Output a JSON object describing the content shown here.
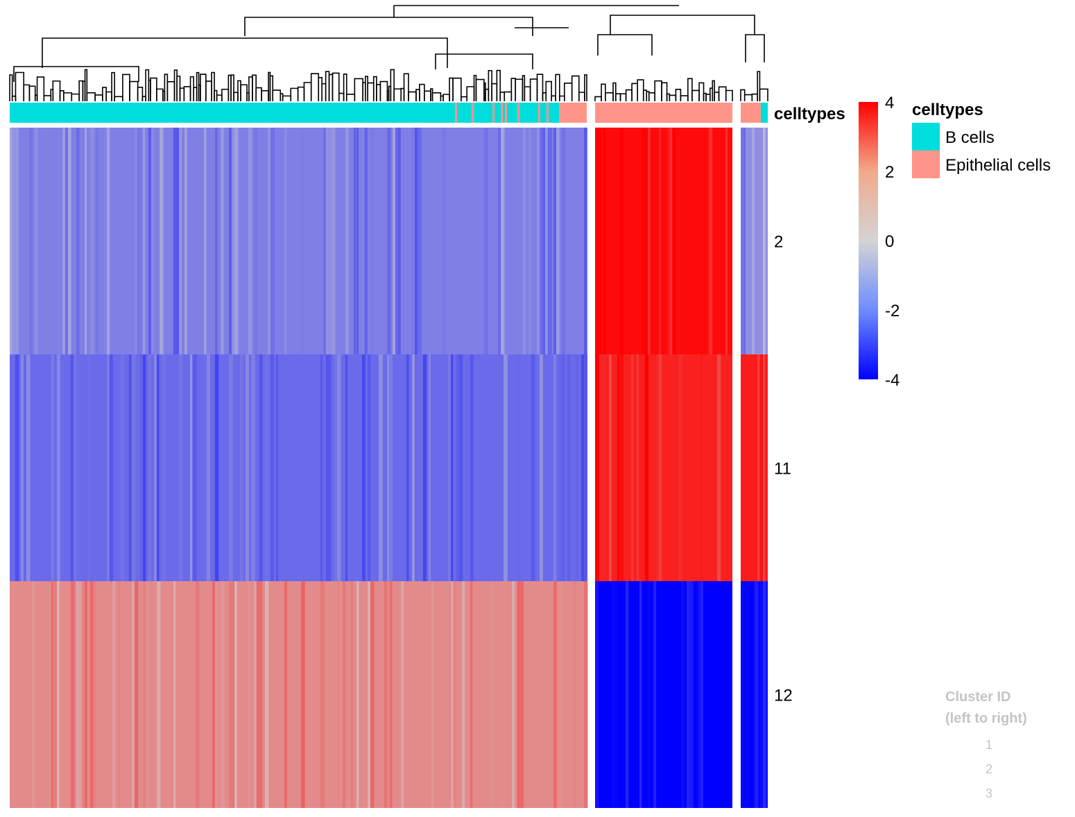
{
  "chart_data": {
    "type": "heatmap",
    "title": "",
    "xlabel": "",
    "ylabel": "",
    "column_splits": [
      {
        "cluster": "1",
        "celltype_mix": "mostly B cells, some Epithelial cells at right end"
      },
      {
        "cluster": "2",
        "celltype_mix": "Epithelial cells"
      },
      {
        "cluster": "3",
        "celltype_mix": "mostly Epithelial cells"
      }
    ],
    "rows": [
      {
        "label": "2",
        "values": [
          -1.6,
          3.8,
          -1.3
        ]
      },
      {
        "label": "11",
        "values": [
          -2.0,
          3.4,
          3.5
        ]
      },
      {
        "label": "12",
        "values": [
          1.4,
          -4.0,
          -3.9
        ]
      }
    ],
    "annotation": {
      "title": "celltypes",
      "legend_title": "celltypes",
      "categories": [
        {
          "name": "B cells",
          "color": "#00DDDD"
        },
        {
          "name": "Epithelial cells",
          "color": "#FF9488"
        }
      ]
    },
    "color_scale": {
      "min": -4,
      "mid": 0,
      "max": 4,
      "colors": [
        "#0000FF",
        "#D4D4D4",
        "#FF0000"
      ],
      "ticks": [
        "4",
        "2",
        "0",
        "-2",
        "-4"
      ]
    },
    "cluster_legend": {
      "title_line1": "Cluster ID",
      "title_line2": "(left to right)",
      "items": [
        "1",
        "2",
        "3"
      ]
    },
    "dendrogram": true
  }
}
